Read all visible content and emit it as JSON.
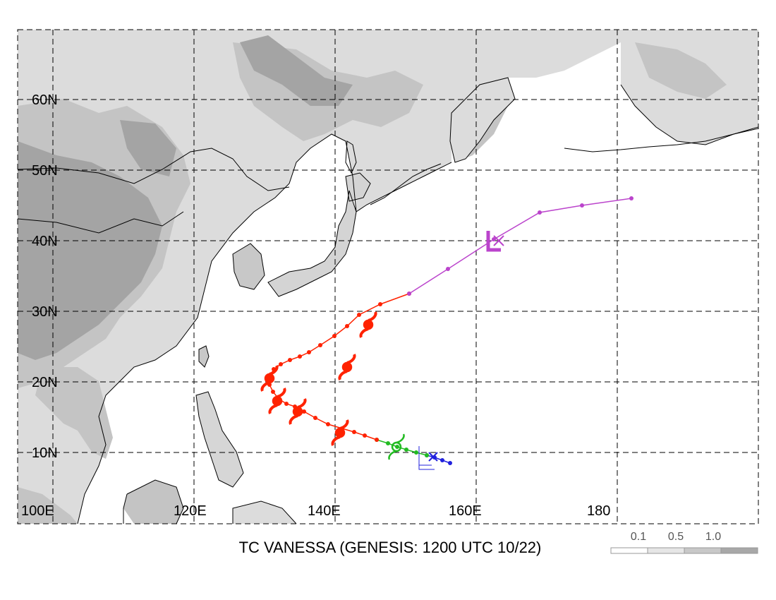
{
  "title": "TC VANESSA (GENESIS: 1200 UTC 10/22)",
  "lat_labels": [
    "10N",
    "20N",
    "30N",
    "40N",
    "50N",
    "60N"
  ],
  "lon_labels": [
    "100E",
    "120E",
    "140E",
    "160E",
    "180"
  ],
  "legend": {
    "labels": [
      "0.1",
      "0.5",
      "1.0"
    ],
    "colors": [
      "#ffffff",
      "#e6e6e6",
      "#c8c8c8",
      "#a8a8a8"
    ]
  },
  "colors": {
    "ocean": "#ffffff",
    "land_light": "#dcdcdc",
    "land_mid": "#c4c4c4",
    "land_dark": "#a4a4a4",
    "coast": "#000000",
    "grid": "#000000",
    "stage_low": "#2222dd",
    "stage_depression": "#22bb22",
    "stage_typhoon": "#ff2200",
    "stage_extratropical": "#bb44cc"
  },
  "map_extent": {
    "lon": [
      100,
      197
    ],
    "lat": [
      3,
      70
    ]
  },
  "track": {
    "segments": [
      {
        "stage": "low",
        "color": "#2222dd",
        "points": [
          [
            156.3,
            8.5
          ],
          [
            155.2,
            8.9
          ],
          [
            154.1,
            9.3
          ],
          [
            153.0,
            9.6
          ]
        ]
      },
      {
        "stage": "depression",
        "color": "#22bb22",
        "points": [
          [
            153.0,
            9.6
          ],
          [
            151.5,
            10.0
          ],
          [
            150.1,
            10.4
          ],
          [
            148.8,
            10.8
          ],
          [
            147.5,
            11.3
          ],
          [
            145.9,
            11.8
          ]
        ]
      },
      {
        "stage": "typhoon",
        "color": "#ff2200",
        "points": [
          [
            145.9,
            11.8
          ],
          [
            144.2,
            12.4
          ],
          [
            142.7,
            12.9
          ],
          [
            141.0,
            13.4
          ],
          [
            139.0,
            14.0
          ],
          [
            137.2,
            14.9
          ],
          [
            135.6,
            15.8
          ],
          [
            134.3,
            16.5
          ],
          [
            133.1,
            16.9
          ],
          [
            132.0,
            17.6
          ],
          [
            131.2,
            18.6
          ],
          [
            130.7,
            19.6
          ],
          [
            130.7,
            20.7
          ],
          [
            131.3,
            21.8
          ],
          [
            132.3,
            22.5
          ],
          [
            133.6,
            23.1
          ],
          [
            135.0,
            23.6
          ],
          [
            136.3,
            24.2
          ],
          [
            137.9,
            25.2
          ],
          [
            139.9,
            26.5
          ],
          [
            141.7,
            27.9
          ],
          [
            143.4,
            29.5
          ],
          [
            146.4,
            31.0
          ],
          [
            150.5,
            32.5
          ]
        ]
      },
      {
        "stage": "extratropical",
        "color": "#bb44cc",
        "points": [
          [
            150.5,
            32.5
          ],
          [
            156.0,
            36.0
          ],
          [
            162.5,
            40.2
          ],
          [
            169.0,
            44.0
          ],
          [
            175.0,
            45.0
          ],
          [
            182.0,
            46.0
          ]
        ]
      }
    ],
    "typhoon_symbols": [
      [
        144.7,
        28.1
      ],
      [
        141.7,
        22.1
      ],
      [
        130.7,
        20.5
      ],
      [
        131.8,
        17.3
      ],
      [
        134.7,
        15.8
      ],
      [
        140.7,
        12.8
      ]
    ],
    "depression_symbol": [
      148.7,
      10.8
    ],
    "genesis_marker": [
      153.3,
      9.4
    ],
    "extratropical_marker": [
      162.7,
      40.0
    ]
  }
}
